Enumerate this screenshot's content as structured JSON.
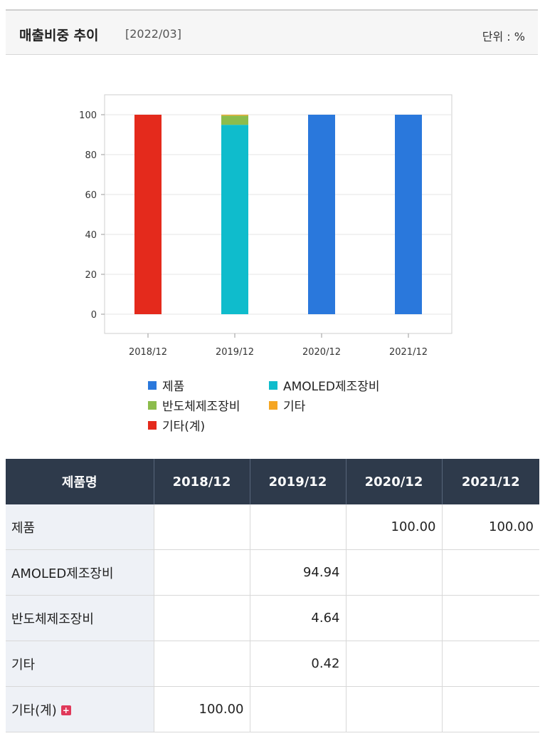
{
  "header": {
    "title": "매출비중 추이",
    "period": "[2022/03]",
    "unit": "단위 : %"
  },
  "chart_data": {
    "type": "bar",
    "stacked": true,
    "categories": [
      "2018/12",
      "2019/12",
      "2020/12",
      "2021/12"
    ],
    "ylim": [
      0,
      100
    ],
    "yticks": [
      0,
      20,
      40,
      60,
      80,
      100
    ],
    "grid": true,
    "legend_position": "bottom",
    "series": [
      {
        "name": "제품",
        "color": "#2a78dc",
        "values": [
          0,
          0,
          100.0,
          100.0
        ]
      },
      {
        "name": "AMOLED제조장비",
        "color": "#0fbccc",
        "values": [
          0,
          94.94,
          0,
          0
        ]
      },
      {
        "name": "반도체제조장비",
        "color": "#8cbc4c",
        "values": [
          0,
          4.64,
          0,
          0
        ]
      },
      {
        "name": "기타",
        "color": "#f5a623",
        "values": [
          0,
          0.42,
          0,
          0
        ]
      },
      {
        "name": "기타(계)",
        "color": "#e42a1c",
        "values": [
          100.0,
          0,
          0,
          0
        ]
      }
    ]
  },
  "table": {
    "headers": [
      "제품명",
      "2018/12",
      "2019/12",
      "2020/12",
      "2021/12"
    ],
    "rows": [
      {
        "name": "제품",
        "cells": [
          "",
          "",
          "100.00",
          "100.00"
        ]
      },
      {
        "name": "AMOLED제조장비",
        "cells": [
          "",
          "94.94",
          "",
          ""
        ]
      },
      {
        "name": "반도체제조장비",
        "cells": [
          "",
          "4.64",
          "",
          ""
        ]
      },
      {
        "name": "기타",
        "cells": [
          "",
          "0.42",
          "",
          ""
        ]
      },
      {
        "name": "기타(계)",
        "cells": [
          "100.00",
          "",
          "",
          ""
        ],
        "expandable": true
      }
    ]
  }
}
